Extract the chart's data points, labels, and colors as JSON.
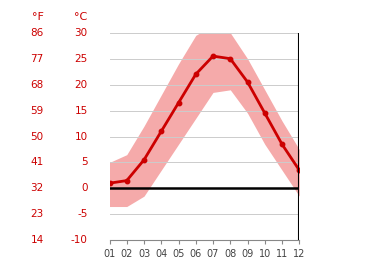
{
  "months": [
    1,
    2,
    3,
    4,
    5,
    6,
    7,
    8,
    9,
    10,
    11,
    12
  ],
  "avg_temp_c": [
    1.0,
    1.5,
    5.5,
    11.0,
    16.5,
    22.0,
    25.5,
    25.0,
    20.5,
    14.5,
    8.5,
    3.5
  ],
  "max_temp_c": [
    5.0,
    6.5,
    12.0,
    18.0,
    24.0,
    29.5,
    31.5,
    30.0,
    25.0,
    19.0,
    13.0,
    7.5
  ],
  "min_temp_c": [
    -3.5,
    -3.5,
    -1.5,
    3.5,
    8.5,
    13.5,
    18.5,
    19.0,
    14.5,
    8.5,
    3.5,
    -1.5
  ],
  "yticks_c": [
    -10,
    -5,
    0,
    5,
    10,
    15,
    20,
    25,
    30
  ],
  "yticks_f": [
    14,
    23,
    32,
    41,
    50,
    59,
    68,
    77,
    86
  ],
  "xtick_labels": [
    "01",
    "02",
    "03",
    "04",
    "05",
    "06",
    "07",
    "08",
    "09",
    "10",
    "11",
    "12"
  ],
  "line_color": "#cc0000",
  "band_color": "#f5aaaa",
  "zero_line_color": "#000000",
  "grid_color": "#cccccc",
  "label_color": "#cc0000",
  "ymin": -10,
  "ymax": 30,
  "fahrenheit_label": "°F",
  "celsius_label": "°C",
  "fig_width": 3.65,
  "fig_height": 2.73,
  "dpi": 100
}
